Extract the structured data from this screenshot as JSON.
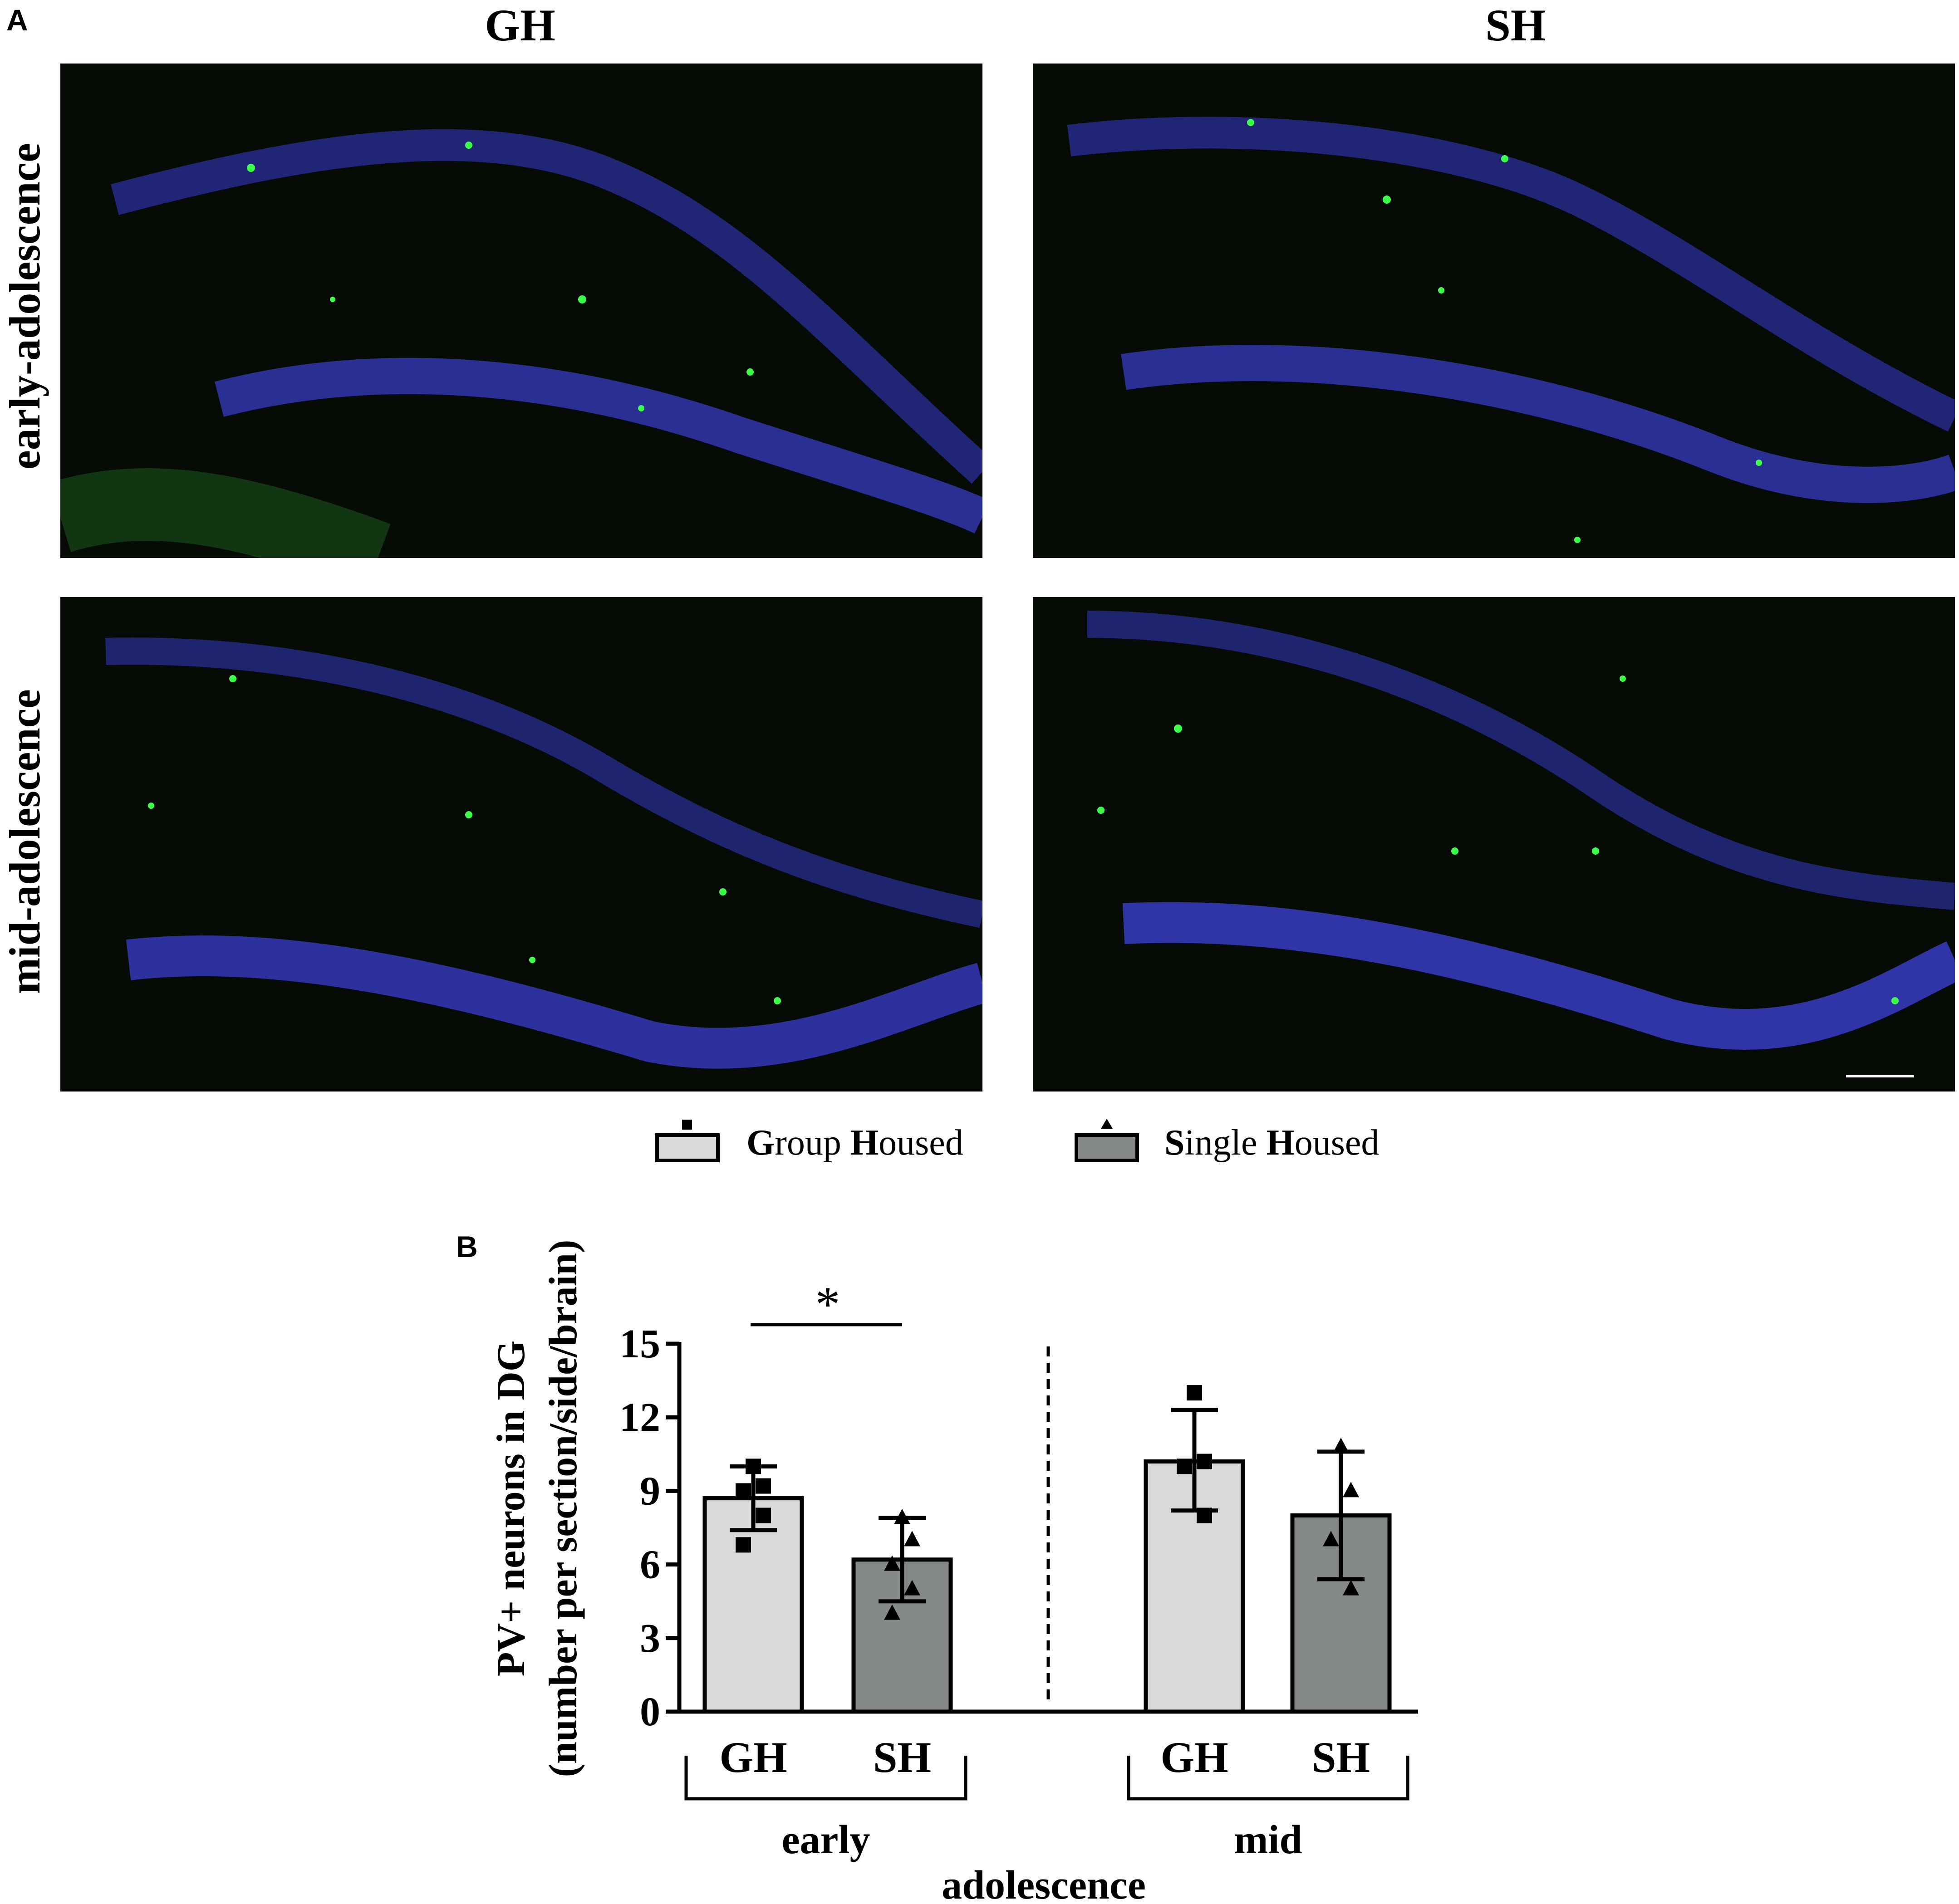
{
  "panel_a": {
    "label": "A",
    "col_headers": [
      "GH",
      "SH"
    ],
    "row_headers": [
      "early-adolescence",
      "mid-adolescence"
    ],
    "channel_colors": {
      "dapi": "#3a3fd0",
      "pv": "#3cff4a",
      "background": "#060b06"
    }
  },
  "legend": {
    "items": [
      {
        "initial1": "G",
        "rest1": "roup ",
        "initial2": "H",
        "rest2": "oused",
        "marker": "square",
        "fill": "#d9d9d9"
      },
      {
        "initial1": "S",
        "rest1": "ingle ",
        "initial2": "H",
        "rest2": "oused",
        "marker": "triangle",
        "fill": "#858a87"
      }
    ]
  },
  "panel_b": {
    "label": "B"
  },
  "chart_data": {
    "type": "bar",
    "ylabel_line1": "PV+ neurons in DG",
    "ylabel_line2": "(number per section/side/brain)",
    "ylim": [
      0,
      15
    ],
    "yticks": [
      0,
      3,
      6,
      9,
      12,
      15
    ],
    "categories": [
      "GH",
      "SH",
      "GH",
      "SH"
    ],
    "groups": [
      {
        "label": "early",
        "categories": [
          0,
          1
        ]
      },
      {
        "label": "mid",
        "categories": [
          2,
          3
        ]
      }
    ],
    "xlabel": "adolescence",
    "bars": [
      {
        "category": "GH",
        "group": "early",
        "mean": 8.7,
        "sd_low": 7.4,
        "sd_high": 10.0,
        "points": [
          10.0,
          9.2,
          9.0,
          8.0,
          6.8
        ],
        "marker": "square",
        "fill": "#d9d9d9"
      },
      {
        "category": "SH",
        "group": "early",
        "mean": 6.2,
        "sd_low": 4.5,
        "sd_high": 7.9,
        "points": [
          7.9,
          7.0,
          6.0,
          5.0,
          4.0
        ],
        "marker": "triangle",
        "fill": "#858a87"
      },
      {
        "category": "GH",
        "group": "mid",
        "mean": 10.2,
        "sd_low": 8.2,
        "sd_high": 12.3,
        "points": [
          13.0,
          10.2,
          10.0,
          8.0
        ],
        "marker": "square",
        "fill": "#d9d9d9"
      },
      {
        "category": "SH",
        "group": "mid",
        "mean": 8.0,
        "sd_low": 5.4,
        "sd_high": 10.6,
        "points": [
          10.8,
          9.0,
          7.0,
          5.0
        ],
        "marker": "triangle",
        "fill": "#858a87"
      }
    ],
    "significance": {
      "between": [
        0,
        1
      ],
      "label": "*"
    },
    "divider": "dashed",
    "grid": false,
    "legend": "top"
  }
}
